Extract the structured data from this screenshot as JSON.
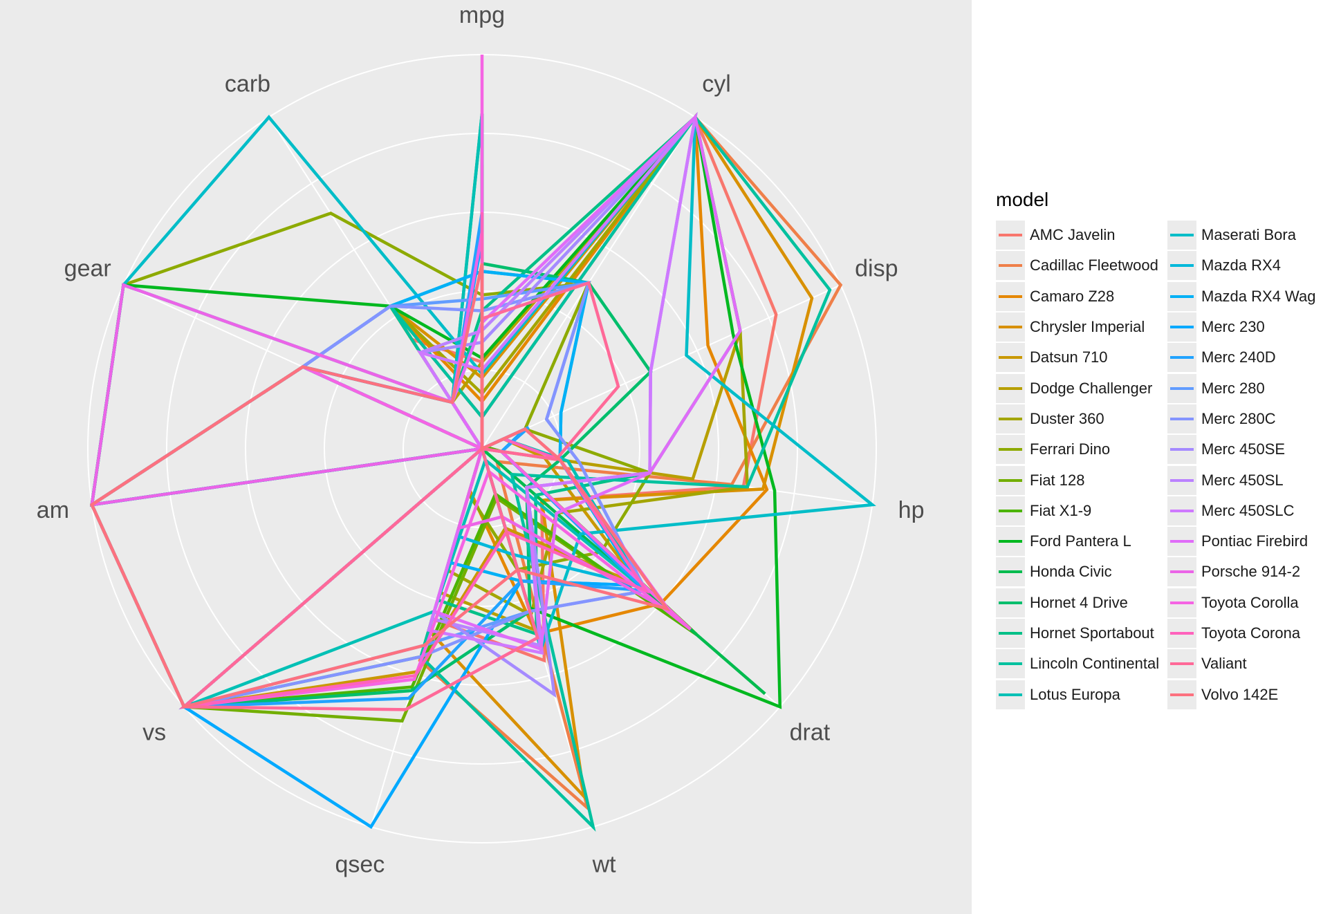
{
  "chart_data": {
    "type": "radar",
    "legend_title": "model",
    "legend_position": "right",
    "axes": [
      "mpg",
      "cyl",
      "disp",
      "hp",
      "drat",
      "wt",
      "qsec",
      "vs",
      "am",
      "gear",
      "carb"
    ],
    "scale": "each variable rescaled to 0-1 (min to max); radial gridlines at 0.2, 0.4, 0.6, 0.8, 1.0",
    "series": [
      {
        "name": "AMC Javelin",
        "color": "#F8766D",
        "values": [
          0.22,
          1.0,
          0.82,
          0.67,
          0.2,
          0.56,
          0.45,
          0.0,
          0.0,
          0.0,
          0.33
        ]
      },
      {
        "name": "Cadillac Fleetwood",
        "color": "#EF7F49",
        "values": [
          0.08,
          1.0,
          1.0,
          0.64,
          0.05,
          0.95,
          0.56,
          0.0,
          0.0,
          0.0,
          0.43
        ]
      },
      {
        "name": "Camaro Z28",
        "color": "#E58700",
        "values": [
          0.12,
          1.0,
          0.63,
          0.73,
          0.6,
          0.49,
          0.11,
          0.0,
          0.0,
          0.0,
          0.43
        ]
      },
      {
        "name": "Chrysler Imperial",
        "color": "#D89000",
        "values": [
          0.18,
          1.0,
          0.92,
          0.72,
          0.2,
          0.92,
          0.48,
          0.0,
          0.0,
          0.0,
          0.43
        ]
      },
      {
        "name": "Datsun 710",
        "color": "#C99800",
        "values": [
          0.53,
          0.0,
          0.06,
          0.16,
          0.53,
          0.21,
          0.59,
          1.0,
          1.0,
          0.5,
          0.0
        ]
      },
      {
        "name": "Dodge Challenger",
        "color": "#B79F00",
        "values": [
          0.22,
          1.0,
          0.72,
          0.54,
          0.0,
          0.48,
          0.38,
          0.0,
          0.0,
          0.0,
          0.14
        ]
      },
      {
        "name": "Duster 360",
        "color": "#A3A500",
        "values": [
          0.14,
          1.0,
          0.72,
          0.68,
          0.25,
          0.44,
          0.32,
          0.0,
          0.0,
          0.0,
          0.43
        ]
      },
      {
        "name": "Ferrari Dino",
        "color": "#8DAA00",
        "values": [
          0.39,
          0.5,
          0.12,
          0.43,
          0.4,
          0.32,
          0.12,
          0.0,
          1.0,
          1.0,
          0.71
        ]
      },
      {
        "name": "Fiat 128",
        "color": "#72AE00",
        "values": [
          0.72,
          0.0,
          0.01,
          0.05,
          0.72,
          0.13,
          0.72,
          1.0,
          1.0,
          0.5,
          0.0
        ]
      },
      {
        "name": "Fiat X1-9",
        "color": "#4CB400",
        "values": [
          0.6,
          0.0,
          0.01,
          0.05,
          0.72,
          0.12,
          0.63,
          1.0,
          1.0,
          0.5,
          0.0
        ]
      },
      {
        "name": "Ford Pantera L",
        "color": "#00B81F",
        "values": [
          0.23,
          1.0,
          0.7,
          0.75,
          1.0,
          0.42,
          0.0,
          0.0,
          1.0,
          1.0,
          0.43
        ]
      },
      {
        "name": "Honda Civic",
        "color": "#00BB4E",
        "values": [
          0.85,
          0.0,
          0.0,
          0.0,
          0.95,
          0.0,
          0.55,
          1.0,
          1.0,
          0.5,
          0.14
        ]
      },
      {
        "name": "Hornet 4 Drive",
        "color": "#00BE6C",
        "values": [
          0.47,
          0.5,
          0.47,
          0.2,
          0.15,
          0.43,
          0.64,
          1.0,
          0.0,
          0.0,
          0.0
        ]
      },
      {
        "name": "Hornet Sportabout",
        "color": "#00C087",
        "values": [
          0.35,
          1.0,
          0.72,
          0.43,
          0.18,
          0.49,
          0.4,
          0.0,
          0.0,
          0.0,
          0.14
        ]
      },
      {
        "name": "Lincoln Continental",
        "color": "#00C19F",
        "values": [
          0.08,
          1.0,
          0.97,
          0.68,
          0.1,
          1.0,
          0.55,
          0.0,
          0.0,
          0.0,
          0.43
        ]
      },
      {
        "name": "Lotus Europa",
        "color": "#00C0B5",
        "values": [
          0.85,
          0.0,
          0.06,
          0.22,
          0.55,
          0.03,
          0.43,
          1.0,
          1.0,
          1.0,
          0.14
        ]
      },
      {
        "name": "Maserati Bora",
        "color": "#00BDC8",
        "values": [
          0.19,
          1.0,
          0.57,
          1.0,
          0.33,
          0.53,
          0.0,
          0.0,
          1.0,
          1.0,
          1.0
        ]
      },
      {
        "name": "Mazda RX4",
        "color": "#00B8DA",
        "values": [
          0.45,
          0.5,
          0.22,
          0.2,
          0.53,
          0.28,
          0.23,
          0.0,
          1.0,
          0.5,
          0.43
        ]
      },
      {
        "name": "Mazda RX4 Wag",
        "color": "#00B0F6",
        "values": [
          0.45,
          0.5,
          0.22,
          0.2,
          0.53,
          0.35,
          0.3,
          0.0,
          1.0,
          0.5,
          0.43
        ]
      },
      {
        "name": "Merc 230",
        "color": "#00A9FF",
        "values": [
          0.53,
          0.0,
          0.12,
          0.05,
          0.53,
          0.35,
          1.0,
          1.0,
          0.0,
          0.5,
          0.14
        ]
      },
      {
        "name": "Merc 240D",
        "color": "#22A3FF",
        "values": [
          0.6,
          0.0,
          0.13,
          0.05,
          0.55,
          0.35,
          0.66,
          1.0,
          0.0,
          0.5,
          0.14
        ]
      },
      {
        "name": "Merc 280",
        "color": "#619CFF",
        "values": [
          0.38,
          0.5,
          0.18,
          0.25,
          0.55,
          0.43,
          0.52,
          1.0,
          0.0,
          0.5,
          0.43
        ]
      },
      {
        "name": "Merc 280C",
        "color": "#8494FF",
        "values": [
          0.35,
          0.5,
          0.18,
          0.25,
          0.55,
          0.43,
          0.55,
          1.0,
          0.0,
          0.5,
          0.43
        ]
      },
      {
        "name": "Merc 450SE",
        "color": "#A58AFF",
        "values": [
          0.27,
          1.0,
          0.47,
          0.43,
          0.15,
          0.65,
          0.43,
          0.0,
          0.0,
          0.0,
          0.29
        ]
      },
      {
        "name": "Merc 450SL",
        "color": "#BB82FF",
        "values": [
          0.3,
          1.0,
          0.47,
          0.43,
          0.15,
          0.52,
          0.45,
          0.0,
          0.0,
          0.0,
          0.29
        ]
      },
      {
        "name": "Merc 450SLC",
        "color": "#CE79FF",
        "values": [
          0.2,
          1.0,
          0.47,
          0.43,
          0.15,
          0.54,
          0.48,
          0.0,
          0.0,
          0.0,
          0.29
        ]
      },
      {
        "name": "Pontiac Firebird",
        "color": "#E06CF8",
        "values": [
          0.32,
          1.0,
          0.72,
          0.43,
          0.25,
          0.53,
          0.43,
          0.0,
          0.0,
          0.0,
          0.14
        ]
      },
      {
        "name": "Porsche 914-2",
        "color": "#EB64E7",
        "values": [
          0.55,
          0.0,
          0.12,
          0.2,
          0.63,
          0.18,
          0.21,
          0.0,
          1.0,
          1.0,
          0.14
        ]
      },
      {
        "name": "Toyota Corolla",
        "color": "#F564E3",
        "values": [
          1.0,
          0.0,
          0.0,
          0.05,
          0.7,
          0.06,
          0.61,
          1.0,
          1.0,
          0.5,
          0.0
        ]
      },
      {
        "name": "Toyota Corona",
        "color": "#FF62BC",
        "values": [
          0.6,
          0.0,
          0.06,
          0.2,
          0.55,
          0.22,
          0.6,
          1.0,
          0.0,
          0.0,
          0.0
        ]
      },
      {
        "name": "Valiant",
        "color": "#FF6998",
        "values": [
          0.33,
          0.5,
          0.38,
          0.19,
          0.0,
          0.5,
          0.69,
          1.0,
          0.0,
          0.0,
          0.0
        ]
      },
      {
        "name": "Volvo 142E",
        "color": "#FC717F",
        "values": [
          0.47,
          0.0,
          0.12,
          0.2,
          0.62,
          0.32,
          0.52,
          1.0,
          1.0,
          0.5,
          0.14
        ]
      }
    ]
  }
}
